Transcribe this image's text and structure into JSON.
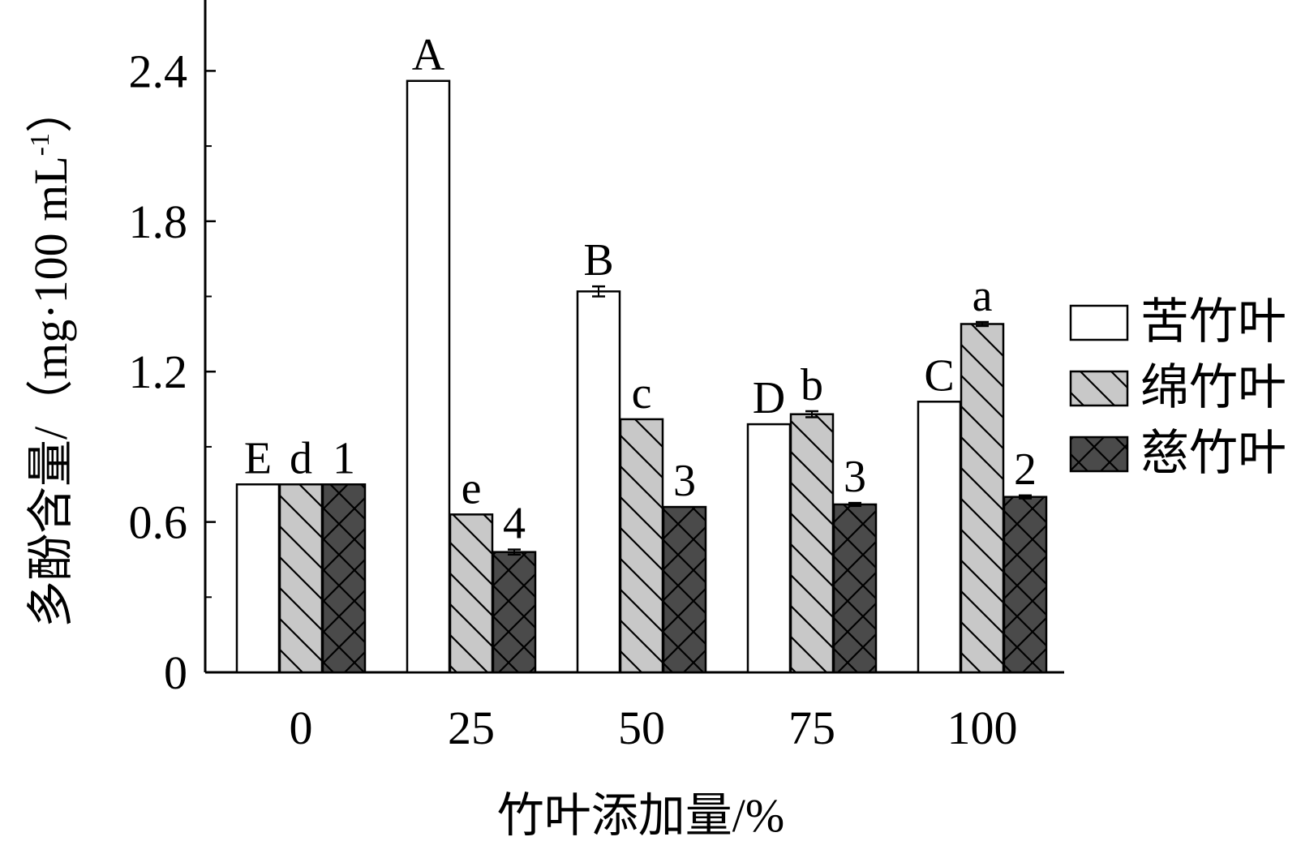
{
  "chart_data": {
    "type": "bar",
    "title": "",
    "xlabel": "竹叶添加量/%",
    "ylabel": "多酚含量/（mg·100 mL",
    "ylabel_sup": "-1",
    "ylabel_close": "）",
    "categories": [
      "0",
      "25",
      "50",
      "75",
      "100"
    ],
    "ylim": [
      0,
      2.7
    ],
    "yticks": [
      0,
      0.6,
      1.2,
      1.8,
      2.4
    ],
    "ytick_labels": [
      "0",
      "0.6",
      "1.2",
      "1.8",
      "2.4"
    ],
    "legend_position": "right",
    "series": [
      {
        "name": "苦竹叶",
        "pattern": "plain",
        "color": "#ffffff",
        "values": [
          0.75,
          2.36,
          1.52,
          0.99,
          1.08
        ],
        "errors": [
          0,
          0,
          0.02,
          0,
          0
        ],
        "labels": [
          "E",
          "A",
          "B",
          "D",
          "C"
        ]
      },
      {
        "name": "绵竹叶",
        "pattern": "diagonal",
        "color": "#c8c8c8",
        "values": [
          0.75,
          0.63,
          1.01,
          1.03,
          1.39
        ],
        "errors": [
          0,
          0,
          0,
          0.012,
          0.008
        ],
        "labels": [
          "d",
          "e",
          "c",
          "b",
          "a"
        ]
      },
      {
        "name": "慈竹叶",
        "pattern": "crosshatch",
        "color": "#4a4a4a",
        "values": [
          0.75,
          0.48,
          0.66,
          0.67,
          0.7
        ],
        "errors": [
          0,
          0.01,
          0,
          0.006,
          0.006
        ],
        "labels": [
          "1",
          "4",
          "3",
          "3",
          "2"
        ]
      }
    ]
  }
}
